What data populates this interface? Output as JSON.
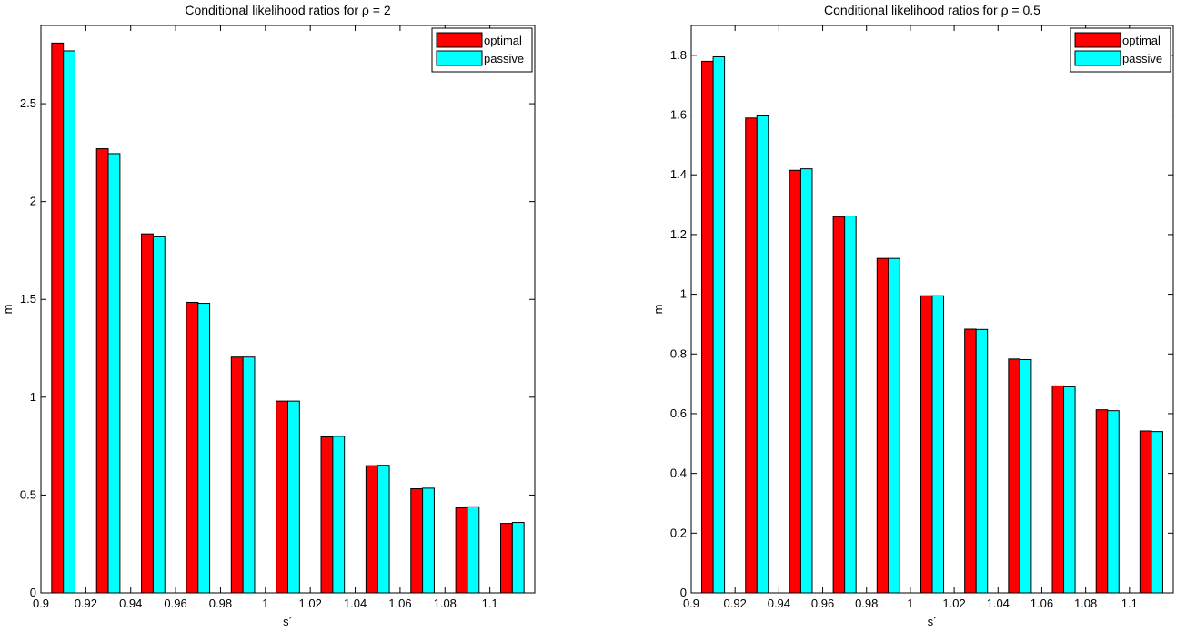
{
  "chart_data": [
    {
      "type": "bar",
      "title": "Conditional likelihood ratios  for ρ =  2",
      "xlabel": "s´",
      "ylabel": "m",
      "x": [
        0.91,
        0.93,
        0.95,
        0.97,
        0.99,
        1.01,
        1.03,
        1.05,
        1.07,
        1.09,
        1.11
      ],
      "series": [
        {
          "name": "optimal",
          "color": "#ff0000",
          "values": [
            2.81,
            2.27,
            1.835,
            1.485,
            1.205,
            0.98,
            0.797,
            0.65,
            0.532,
            0.435,
            0.355
          ]
        },
        {
          "name": "passive",
          "color": "#00ffff",
          "values": [
            2.77,
            2.245,
            1.82,
            1.48,
            1.205,
            0.98,
            0.8,
            0.652,
            0.535,
            0.44,
            0.36
          ]
        }
      ],
      "xlim": [
        0.9,
        1.12
      ],
      "xticks": [
        0.9,
        0.92,
        0.94,
        0.96,
        0.98,
        1,
        1.02,
        1.04,
        1.06,
        1.08,
        1.1
      ],
      "ylim": [
        0,
        2.9
      ],
      "yticks": [
        0,
        0.5,
        1,
        1.5,
        2,
        2.5
      ],
      "legend": "northeast"
    },
    {
      "type": "bar",
      "title": "Conditional likelihood ratios  for ρ =  0.5",
      "xlabel": "s´",
      "ylabel": "m",
      "x": [
        0.91,
        0.93,
        0.95,
        0.97,
        0.99,
        1.01,
        1.03,
        1.05,
        1.07,
        1.09,
        1.11
      ],
      "series": [
        {
          "name": "optimal",
          "color": "#ff0000",
          "values": [
            1.78,
            1.59,
            1.415,
            1.26,
            1.12,
            0.995,
            0.883,
            0.783,
            0.693,
            0.613,
            0.542
          ]
        },
        {
          "name": "passive",
          "color": "#00ffff",
          "values": [
            1.795,
            1.597,
            1.42,
            1.262,
            1.12,
            0.995,
            0.882,
            0.781,
            0.69,
            0.61,
            0.54
          ]
        }
      ],
      "xlim": [
        0.9,
        1.12
      ],
      "xticks": [
        0.9,
        0.92,
        0.94,
        0.96,
        0.98,
        1,
        1.02,
        1.04,
        1.06,
        1.08,
        1.1
      ],
      "ylim": [
        0,
        1.9
      ],
      "yticks": [
        0,
        0.2,
        0.4,
        0.6,
        0.8,
        1,
        1.2,
        1.4,
        1.6,
        1.8
      ],
      "legend": "northeast"
    }
  ]
}
